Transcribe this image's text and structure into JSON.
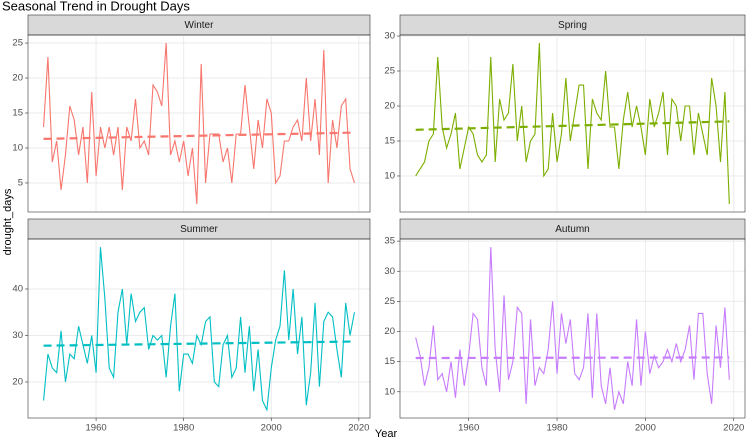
{
  "title": "Seasonal Trend in Drought Days",
  "x_label": "Year",
  "y_label": "drought_days",
  "chart_data": [
    {
      "type": "line",
      "title": "Winter",
      "color": "#F8766D",
      "x": [
        1948,
        1949,
        1950,
        1951,
        1952,
        1953,
        1954,
        1955,
        1956,
        1957,
        1958,
        1959,
        1960,
        1961,
        1962,
        1963,
        1964,
        1965,
        1966,
        1967,
        1968,
        1969,
        1970,
        1971,
        1972,
        1973,
        1974,
        1975,
        1976,
        1977,
        1978,
        1979,
        1980,
        1981,
        1982,
        1983,
        1984,
        1985,
        1986,
        1987,
        1988,
        1989,
        1990,
        1991,
        1992,
        1993,
        1994,
        1995,
        1996,
        1997,
        1998,
        1999,
        2000,
        2001,
        2002,
        2003,
        2004,
        2005,
        2006,
        2007,
        2008,
        2009,
        2010,
        2011,
        2012,
        2013,
        2014,
        2015,
        2016,
        2017,
        2018,
        2019
      ],
      "values": [
        13,
        23,
        8,
        11,
        4,
        9,
        16,
        14,
        9,
        13,
        5,
        18,
        6,
        13,
        10,
        13,
        9,
        13,
        4,
        13,
        11,
        17,
        10,
        11,
        9,
        19,
        18,
        16,
        25,
        9,
        11,
        8,
        11,
        6,
        10,
        2,
        22,
        5,
        12,
        12,
        12,
        8,
        10,
        5,
        12,
        12,
        19,
        13,
        7,
        14,
        10,
        17,
        15,
        5,
        6,
        11,
        11,
        13,
        14,
        11,
        20,
        11,
        17,
        9,
        24,
        5,
        14,
        10,
        16,
        17,
        7,
        5
      ],
      "trend": {
        "x": [
          1948,
          2019
        ],
        "values": [
          11.3,
          12.2
        ]
      },
      "xlim": [
        1944.45,
        2022.55
      ],
      "xticks": [
        1960,
        1980,
        2000,
        2020
      ],
      "ylim": [
        0.85,
        26.15
      ],
      "yticks": [
        5,
        10,
        15,
        20,
        25
      ],
      "grid": true
    },
    {
      "type": "line",
      "title": "Spring",
      "color": "#7CAE00",
      "x": [
        1948,
        1949,
        1950,
        1951,
        1952,
        1953,
        1954,
        1955,
        1956,
        1957,
        1958,
        1959,
        1960,
        1961,
        1962,
        1963,
        1964,
        1965,
        1966,
        1967,
        1968,
        1969,
        1970,
        1971,
        1972,
        1973,
        1974,
        1975,
        1976,
        1977,
        1978,
        1979,
        1980,
        1981,
        1982,
        1983,
        1984,
        1985,
        1986,
        1987,
        1988,
        1989,
        1990,
        1991,
        1992,
        1993,
        1994,
        1995,
        1996,
        1997,
        1998,
        1999,
        2000,
        2001,
        2002,
        2003,
        2004,
        2005,
        2006,
        2007,
        2008,
        2009,
        2010,
        2011,
        2012,
        2013,
        2014,
        2015,
        2016,
        2017,
        2018,
        2019
      ],
      "values": [
        10,
        11,
        12,
        15,
        16,
        27,
        17,
        14,
        16,
        19,
        11,
        14,
        17,
        16,
        13,
        12,
        13,
        27,
        12,
        21,
        18,
        19,
        26,
        15,
        20,
        12,
        15,
        16,
        29,
        10,
        11,
        19,
        12,
        16,
        24,
        15,
        19,
        23,
        23,
        11,
        21,
        19,
        18,
        25,
        17,
        17,
        11,
        18,
        22,
        17,
        20,
        17,
        13,
        21,
        17,
        19,
        22,
        13,
        21,
        20,
        15,
        20,
        20,
        13,
        19,
        16,
        13,
        24,
        20,
        12,
        22,
        6
      ],
      "trend": {
        "x": [
          1948,
          2019
        ],
        "values": [
          16.6,
          17.8
        ]
      },
      "xlim": [
        1944.45,
        2022.55
      ],
      "xticks": [
        1960,
        1980,
        2000,
        2020
      ],
      "ylim": [
        4.85,
        30.15
      ],
      "yticks": [
        10,
        15,
        20,
        25,
        30
      ],
      "grid": true
    },
    {
      "type": "line",
      "title": "Summer",
      "color": "#00BFC4",
      "x": [
        1948,
        1949,
        1950,
        1951,
        1952,
        1953,
        1954,
        1955,
        1956,
        1957,
        1958,
        1959,
        1960,
        1961,
        1962,
        1963,
        1964,
        1965,
        1966,
        1967,
        1968,
        1969,
        1970,
        1971,
        1972,
        1973,
        1974,
        1975,
        1976,
        1977,
        1978,
        1979,
        1980,
        1981,
        1982,
        1983,
        1984,
        1985,
        1986,
        1987,
        1988,
        1989,
        1990,
        1991,
        1992,
        1993,
        1994,
        1995,
        1996,
        1997,
        1998,
        1999,
        2000,
        2001,
        2002,
        2003,
        2004,
        2005,
        2006,
        2007,
        2008,
        2009,
        2010,
        2011,
        2012,
        2013,
        2014,
        2015,
        2016,
        2017,
        2018,
        2019
      ],
      "values": [
        16,
        26,
        23,
        22,
        31,
        20,
        26,
        25,
        32,
        28,
        24,
        30,
        22,
        49,
        38,
        23,
        21,
        35,
        40,
        28,
        39,
        33,
        35,
        36,
        27,
        30,
        29,
        30,
        21,
        32,
        39,
        18,
        26,
        26,
        24,
        30,
        28,
        33,
        34,
        20,
        19,
        28,
        30,
        21,
        23,
        34,
        22,
        32,
        18,
        27,
        16,
        14,
        23,
        29,
        32,
        44,
        29,
        40,
        26,
        34,
        15,
        22,
        37,
        19,
        33,
        35,
        34,
        27,
        21,
        37,
        30,
        35
      ],
      "trend": {
        "x": [
          1948,
          2019
        ],
        "values": [
          27.8,
          28.7
        ]
      },
      "xlim": [
        1944.45,
        2022.55
      ],
      "xticks": [
        1960,
        1980,
        2000,
        2020
      ],
      "ylim": [
        12.25,
        50.75
      ],
      "yticks": [
        20,
        30,
        40
      ],
      "grid": true
    },
    {
      "type": "line",
      "title": "Autumn",
      "color": "#C77CFF",
      "x": [
        1948,
        1949,
        1950,
        1951,
        1952,
        1953,
        1954,
        1955,
        1956,
        1957,
        1958,
        1959,
        1960,
        1961,
        1962,
        1963,
        1964,
        1965,
        1966,
        1967,
        1968,
        1969,
        1970,
        1971,
        1972,
        1973,
        1974,
        1975,
        1976,
        1977,
        1978,
        1979,
        1980,
        1981,
        1982,
        1983,
        1984,
        1985,
        1986,
        1987,
        1988,
        1989,
        1990,
        1991,
        1992,
        1993,
        1994,
        1995,
        1996,
        1997,
        1998,
        1999,
        2000,
        2001,
        2002,
        2003,
        2004,
        2005,
        2006,
        2007,
        2008,
        2009,
        2010,
        2011,
        2012,
        2013,
        2014,
        2015,
        2016,
        2017,
        2018,
        2019
      ],
      "values": [
        19,
        16,
        11,
        14,
        21,
        12,
        13,
        10,
        15,
        9,
        17,
        11,
        16,
        23,
        22,
        14,
        11,
        34,
        17,
        10,
        26,
        12,
        15,
        24,
        23,
        8,
        22,
        11,
        14,
        13,
        17,
        25,
        13,
        23,
        18,
        22,
        13,
        12,
        14,
        23,
        9,
        23,
        11,
        8,
        14,
        7,
        10,
        8,
        15,
        11,
        22,
        11,
        20,
        13,
        16,
        14,
        15,
        17,
        15,
        18,
        15,
        17,
        21,
        12,
        23,
        23,
        13,
        8,
        21,
        14,
        24,
        12
      ],
      "trend": {
        "x": [
          1948,
          2019
        ],
        "values": [
          15.6,
          15.7
        ]
      },
      "xlim": [
        1944.45,
        2022.55
      ],
      "xticks": [
        1960,
        1980,
        2000,
        2020
      ],
      "ylim": [
        5.65,
        35.35
      ],
      "yticks": [
        10,
        15,
        20,
        25,
        30,
        35
      ],
      "grid": true
    }
  ]
}
